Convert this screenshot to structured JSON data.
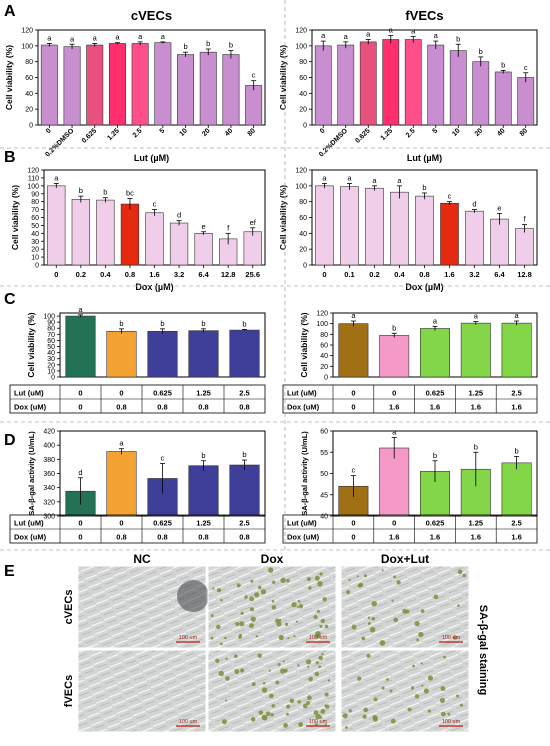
{
  "panel_labels": [
    "A",
    "B",
    "C",
    "D",
    "E"
  ],
  "chart_data": [
    {
      "id": "A-cVECs",
      "type": "bar",
      "title": "cVECs",
      "xlabel": "Lut (µM)",
      "ylabel": "Cell viability (%)",
      "categories": [
        "0",
        "0.2%DMSO",
        "0.625",
        "1.25",
        "2.5",
        "5",
        "10",
        "20",
        "40",
        "80"
      ],
      "values": [
        101,
        99,
        101,
        103,
        103,
        104,
        89,
        92,
        89,
        50
      ],
      "errors": [
        2,
        3,
        2,
        1,
        2,
        1,
        3,
        4,
        5,
        6
      ],
      "letters": [
        "a",
        "a",
        "a",
        "a",
        "a",
        "a",
        "b",
        "b",
        "b",
        "c"
      ],
      "ylim": [
        0,
        120
      ],
      "yticks": [
        0,
        20,
        40,
        60,
        80,
        100,
        120
      ],
      "bar_colors": [
        "#c88ed0",
        "#c88ed0",
        "#e8507e",
        "#ff2f6e",
        "#ff4f8a",
        "#c88ed0",
        "#c88ed0",
        "#c88ed0",
        "#c88ed0",
        "#c88ed0"
      ]
    },
    {
      "id": "A-fVECs",
      "type": "bar",
      "title": "fVECs",
      "xlabel": "Lut (µM)",
      "ylabel": "Cell viability (%)",
      "categories": [
        "0",
        "0.2%DMSO",
        "0.625",
        "1.25",
        "2.5",
        "5",
        "10",
        "20",
        "40",
        "80"
      ],
      "values": [
        100,
        101,
        105,
        108,
        108,
        101,
        94,
        80,
        67,
        60
      ],
      "errors": [
        6,
        4,
        3,
        5,
        4,
        5,
        8,
        6,
        2,
        6
      ],
      "letters": [
        "a",
        "a",
        "a",
        "a",
        "a",
        "a",
        "b",
        "b",
        "b",
        "c"
      ],
      "ylim": [
        0,
        120
      ],
      "yticks": [
        0,
        20,
        40,
        60,
        80,
        100,
        120
      ],
      "bar_colors": [
        "#c88ed0",
        "#c88ed0",
        "#e8507e",
        "#ff2f6e",
        "#ff4f8a",
        "#c88ed0",
        "#c88ed0",
        "#c88ed0",
        "#c88ed0",
        "#c88ed0"
      ]
    },
    {
      "id": "B-cVECs",
      "type": "bar",
      "xlabel": "Dox (µM)",
      "ylabel": "Cell viability (%)",
      "categories": [
        "0",
        "0.2",
        "0.4",
        "0.8",
        "1.6",
        "3.2",
        "6.4",
        "12.8",
        "25.6"
      ],
      "values": [
        100,
        83,
        82,
        77,
        66,
        53,
        40,
        33,
        42
      ],
      "errors": [
        3,
        4,
        3,
        7,
        4,
        3,
        2,
        7,
        5
      ],
      "letters": [
        "a",
        "b",
        "b",
        "bc",
        "c",
        "d",
        "e",
        "f",
        "ef"
      ],
      "ylim": [
        0,
        120
      ],
      "yticks": [
        0,
        10,
        20,
        30,
        40,
        50,
        60,
        70,
        80,
        90,
        100,
        110,
        120
      ],
      "bar_colors": [
        "#f0cde8",
        "#f0cde8",
        "#f0cde8",
        "#e62a10",
        "#f0cde8",
        "#f0cde8",
        "#f0cde8",
        "#f0cde8",
        "#f0cde8"
      ]
    },
    {
      "id": "B-fVECs",
      "type": "bar",
      "xlabel": "Dox (µM)",
      "ylabel": "Cell viability (%)",
      "categories": [
        "0",
        "0.1",
        "0.2",
        "0.4",
        "0.8",
        "1.6",
        "3.2",
        "6.4",
        "12.8"
      ],
      "values": [
        100,
        99,
        97,
        92,
        87,
        78,
        68,
        58,
        46
      ],
      "errors": [
        3,
        4,
        3,
        8,
        4,
        2,
        2,
        7,
        5
      ],
      "letters": [
        "a",
        "a",
        "a",
        "a",
        "b",
        "c",
        "d",
        "e",
        "f"
      ],
      "ylim": [
        0,
        120
      ],
      "yticks": [
        0,
        20,
        40,
        60,
        80,
        100,
        120
      ],
      "bar_colors": [
        "#f0cde8",
        "#f0cde8",
        "#f0cde8",
        "#f0cde8",
        "#f0cde8",
        "#e62a10",
        "#f0cde8",
        "#f0cde8",
        "#f0cde8"
      ]
    },
    {
      "id": "C-cVECs",
      "type": "bar",
      "ylabel": "Cell viability (%)",
      "values": [
        100,
        75,
        75,
        76,
        77
      ],
      "errors": [
        2,
        4,
        4,
        3,
        1
      ],
      "letters": [
        "a",
        "b",
        "b",
        "b",
        "b"
      ],
      "ylim": [
        0,
        105
      ],
      "yticks": [
        0,
        10,
        20,
        30,
        40,
        50,
        60,
        70,
        80,
        90,
        100
      ],
      "bar_colors": [
        "#237256",
        "#f5a234",
        "#3f3f9a",
        "#3f3f9a",
        "#3f3f9a"
      ],
      "table": {
        "rows": [
          {
            "label": "Lut (uM)",
            "values": [
              "0",
              "0",
              "0.625",
              "1.25",
              "2.5"
            ]
          },
          {
            "label": "Dox (uM)",
            "values": [
              "0",
              "0.8",
              "0.8",
              "0.8",
              "0.8"
            ]
          }
        ]
      }
    },
    {
      "id": "C-fVECs",
      "type": "bar",
      "ylabel": "Cell viability (%)",
      "values": [
        100,
        78,
        91,
        101,
        101
      ],
      "errors": [
        5,
        4,
        4,
        3,
        4
      ],
      "letters": [
        "a",
        "b",
        "a",
        "a",
        "a"
      ],
      "ylim": [
        0,
        120
      ],
      "yticks": [
        0,
        20,
        40,
        60,
        80,
        100,
        120
      ],
      "bar_colors": [
        "#a07114",
        "#f59ac8",
        "#82d648",
        "#82d648",
        "#82d648"
      ],
      "table": {
        "rows": [
          {
            "label": "Lut (uM)",
            "values": [
              "0",
              "0",
              "0.625",
              "1.25",
              "2.5"
            ]
          },
          {
            "label": "Dox (uM)",
            "values": [
              "0",
              "1.6",
              "1.6",
              "1.6",
              "1.6"
            ]
          }
        ]
      }
    },
    {
      "id": "D-cVECs",
      "type": "bar",
      "ylabel": "SA-β-gal activity (U/mL)",
      "values": [
        335,
        391,
        353,
        371,
        372
      ],
      "errors": [
        19,
        4,
        21,
        7,
        7
      ],
      "letters": [
        "d",
        "a",
        "c",
        "b",
        "b"
      ],
      "ylim": [
        300,
        420
      ],
      "yticks": [
        300,
        320,
        340,
        360,
        380,
        400,
        420
      ],
      "bar_colors": [
        "#237256",
        "#f5a234",
        "#3f3f9a",
        "#3f3f9a",
        "#3f3f9a"
      ],
      "table": {
        "rows": [
          {
            "label": "Lut (uM)",
            "values": [
              "0",
              "0",
              "0.625",
              "1.25",
              "2.5"
            ]
          },
          {
            "label": "Dox (uM)",
            "values": [
              "0",
              "0.8",
              "0.8",
              "0.8",
              "0.8"
            ]
          }
        ]
      }
    },
    {
      "id": "D-fVECs",
      "type": "bar",
      "ylabel": "SA-β-gal activity (U/mL)",
      "values": [
        47,
        56,
        50.5,
        51,
        52.5
      ],
      "errors": [
        2.5,
        2.5,
        2.5,
        4,
        1.5
      ],
      "letters": [
        "c",
        "a",
        "b",
        "b",
        "b"
      ],
      "ylim": [
        40,
        60
      ],
      "yticks": [
        40,
        45,
        50,
        55,
        60
      ],
      "bar_colors": [
        "#a07114",
        "#f59ac8",
        "#82d648",
        "#82d648",
        "#82d648"
      ],
      "table": {
        "rows": [
          {
            "label": "Lut (uM)",
            "values": [
              "0",
              "0",
              "0.625",
              "1.25",
              "2.5"
            ]
          },
          {
            "label": "Dox (uM)",
            "values": [
              "0",
              "1.6",
              "1.6",
              "1.6",
              "1.6"
            ]
          }
        ]
      }
    }
  ],
  "micrographs": {
    "columns": [
      "NC",
      "Dox",
      "Dox+Lut"
    ],
    "rows": [
      "cVECs",
      "fVECs"
    ],
    "side_label": "SA-β-gal staining",
    "scale_bar": "100 um"
  }
}
